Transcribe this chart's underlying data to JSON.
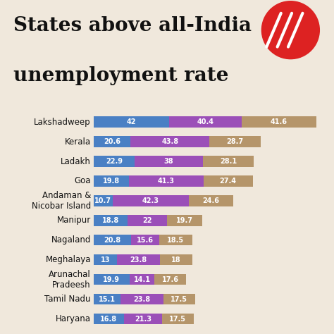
{
  "title_line1": "States above all-India",
  "title_line2": "unemployment rate",
  "background_color": "#f0e8dc",
  "bar_colors": [
    "#4a80c4",
    "#9b4fb8",
    "#b5956a"
  ],
  "categories": [
    "Lakshadweep",
    "Kerala",
    "Ladakh",
    "Goa",
    "Andaman &\nNicobar Island",
    "Manipur",
    "Nagaland",
    "Meghalaya",
    "Arunachal\nPradeesh",
    "Tamil Nadu",
    "Haryana"
  ],
  "values": [
    [
      42,
      40.4,
      41.6
    ],
    [
      20.6,
      43.8,
      28.7
    ],
    [
      22.9,
      38,
      28.1
    ],
    [
      19.8,
      41.3,
      27.4
    ],
    [
      10.7,
      42.3,
      24.6
    ],
    [
      18.8,
      22,
      19.7
    ],
    [
      20.8,
      15.6,
      18.5
    ],
    [
      13,
      23.8,
      18
    ],
    [
      19.9,
      14.1,
      17.6
    ],
    [
      15.1,
      23.8,
      17.5
    ],
    [
      16.8,
      21.3,
      17.5
    ]
  ],
  "title_fontsize": 20,
  "label_fontsize": 7,
  "category_fontsize": 8.5,
  "bar_height": 0.55,
  "logo_color": "#dd2222",
  "text_color": "#111111"
}
